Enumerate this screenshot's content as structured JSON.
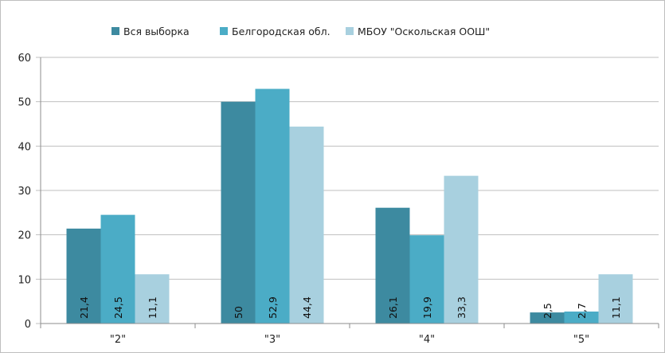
{
  "chart_data": {
    "type": "bar",
    "categories": [
      "\"2\"",
      "\"3\"",
      "\"4\"",
      "\"5\""
    ],
    "series": [
      {
        "name": "Вся выборка",
        "values": [
          21.4,
          50,
          26.1,
          2.5
        ],
        "labels": [
          "21,4",
          "50",
          "26,1",
          "2,5"
        ],
        "color": "#3d8aa0"
      },
      {
        "name": "Белгородская обл.",
        "values": [
          24.5,
          52.9,
          19.9,
          2.7
        ],
        "labels": [
          "24,5",
          "52,9",
          "19,9",
          "2,7"
        ],
        "color": "#4bacc6"
      },
      {
        "name": "МБОУ \"Оскольская ООШ\"",
        "values": [
          11.1,
          44.4,
          33.3,
          11.1
        ],
        "labels": [
          "11,1",
          "44,4",
          "33,3",
          "11,1"
        ],
        "color": "#a8d0df"
      }
    ],
    "ylim": [
      0,
      60
    ],
    "yticks": [
      0,
      10,
      20,
      30,
      40,
      50,
      60
    ],
    "grid": true,
    "legend_position": "top",
    "gridline_color": "#bfbfbf"
  }
}
